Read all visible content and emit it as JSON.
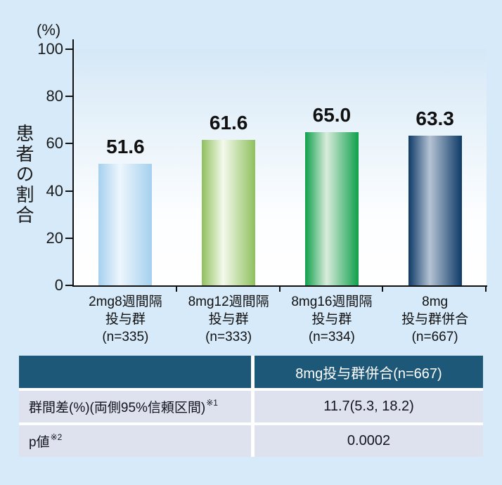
{
  "colors": {
    "page_bg": "#d7eafa",
    "axis": "#111111"
  },
  "chart_data": {
    "type": "bar",
    "title": "",
    "ylabel": "患者の割合",
    "y_unit_label": "(%)",
    "xlabel": "",
    "ylim": [
      0,
      100
    ],
    "yticks": [
      100,
      80,
      60,
      40,
      20,
      0
    ],
    "grid": false,
    "legend": "none",
    "categories": [
      "2mg8週間隔\n投与群\n(n=335)",
      "8mg12週間隔\n投与群\n(n=333)",
      "8mg16週間隔\n投与群\n(n=334)",
      "8mg\n投与群併合\n(n=667)"
    ],
    "values": [
      51.6,
      61.6,
      65.0,
      63.3
    ],
    "value_labels": [
      "51.6",
      "61.6",
      "65.0",
      "63.3"
    ],
    "bar_colors": [
      {
        "edge": "#a5d0ee",
        "highlight": "#edf6fd"
      },
      {
        "edge": "#8fc05e",
        "highlight": "#f4f9ec"
      },
      {
        "edge": "#0fa04b",
        "highlight": "#d9ecdd"
      },
      {
        "edge": "#0e3a67",
        "highlight": "#b5c3d4"
      }
    ]
  },
  "table": {
    "header": {
      "row_label_col": "",
      "value_col": "8mg投与群併合(n=667)"
    },
    "rows": [
      {
        "label": "群間差(%)(両側95%信頼区間)",
        "footnote_mark": "※1",
        "value": "11.7(5.3, 18.2)"
      },
      {
        "label": "p値",
        "footnote_mark": "※2",
        "value": "0.0002"
      }
    ],
    "colors": {
      "header_bg": "#1d5878",
      "header_text": "#ffffff",
      "row_bg": "#dde2ee",
      "row_text": "#14141e"
    }
  }
}
